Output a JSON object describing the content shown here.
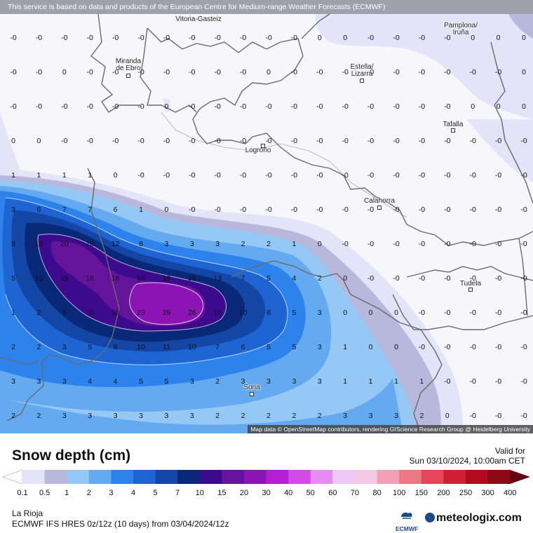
{
  "header": {
    "notice": "This service is based on data and products of the European Centre for Medium-range Weather Forecasts (ECMWF)"
  },
  "map": {
    "attribution": "Map data © OpenStreetMap contributors, rendering GIScience Research Group @ Heidelberg University",
    "cities": [
      {
        "name": "Vitoria-Gasteiz",
        "lines": [
          "Vitoria-Gasteiz"
        ]
      },
      {
        "name": "Pamplona/ Iruña",
        "lines": [
          "Pamplona/",
          "Iruña"
        ]
      },
      {
        "name": "Miranda de Ebro",
        "lines": [
          "Miranda",
          "de Ebro"
        ]
      },
      {
        "name": "Estella/ Lizarra",
        "lines": [
          "Estella/",
          "Lizarra"
        ]
      },
      {
        "name": "Tafalla",
        "lines": [
          "Tafalla"
        ]
      },
      {
        "name": "Logroño",
        "lines": [
          "Logroño"
        ]
      },
      {
        "name": "Calahorra",
        "lines": [
          "Calahorra"
        ]
      },
      {
        "name": "Tudela",
        "lines": [
          "Tudela"
        ]
      },
      {
        "name": "Soria",
        "lines": [
          "Soria"
        ]
      }
    ],
    "grid_values": [
      [
        "-0",
        "-0",
        "-0",
        "-0",
        "-0",
        "-0",
        "-0",
        "-0",
        "-0",
        "-0",
        "-0",
        "-0",
        "0",
        "0",
        "-0",
        "-0",
        "-0",
        "-0",
        "0",
        "0",
        "0"
      ],
      [
        "-0",
        "-0",
        "0",
        "-0",
        "-0",
        "-0",
        "-0",
        "-0",
        "-0",
        "-0",
        "0",
        "-0",
        "-0",
        "-0",
        "-0",
        "-0",
        "-0",
        "-0",
        "-0",
        "-0",
        "0"
      ],
      [
        "-0",
        "-0",
        "-0",
        "-0",
        "-0",
        "-0",
        "0",
        "-0",
        "-0",
        "-0",
        "-0",
        "-0",
        "-0",
        "-0",
        "-0",
        "-0",
        "-0",
        "-0",
        "0",
        "0",
        "0"
      ],
      [
        "0",
        "0",
        "-0",
        "-0",
        "-0",
        "-0",
        "-0",
        "-0",
        "-0",
        "-0",
        "-0",
        "-0",
        "-0",
        "-0",
        "-0",
        "-0",
        "-0",
        "-0",
        "-0",
        "-0",
        "-0"
      ],
      [
        "1",
        "1",
        "1",
        "1",
        "0",
        "-0",
        "-0",
        "-0",
        "-0",
        "-0",
        "-0",
        "-0",
        "-0",
        "-0",
        "-0",
        "-0",
        "-0",
        "-0",
        "-0",
        "-0",
        "-0"
      ],
      [
        "3",
        "6",
        "7",
        "7",
        "6",
        "1",
        "0",
        "-0",
        "-0",
        "-0",
        "-0",
        "-0",
        "-0",
        "-0",
        "-0",
        "-0",
        "-0",
        "-0",
        "-0",
        "-0",
        "-0"
      ],
      [
        "8",
        "13",
        "20",
        "16",
        "12",
        "8",
        "3",
        "3",
        "3",
        "2",
        "2",
        "1",
        "0",
        "-0",
        "-0",
        "-0",
        "-0",
        "-0",
        "-0",
        "-0",
        "-0"
      ],
      [
        "5",
        "12",
        "16",
        "16",
        "16",
        "18",
        "18",
        "18",
        "13",
        "7",
        "5",
        "4",
        "2",
        "0",
        "-0",
        "-0",
        "-0",
        "-0",
        "-0",
        "-0",
        "-0"
      ],
      [
        "1",
        "2",
        "5",
        "10",
        "16",
        "23",
        "29",
        "26",
        "16",
        "10",
        "8",
        "5",
        "3",
        "0",
        "0",
        "0",
        "-0",
        "-0",
        "-0",
        "-0",
        "-0"
      ],
      [
        "2",
        "2",
        "3",
        "5",
        "8",
        "10",
        "11",
        "10",
        "7",
        "6",
        "5",
        "5",
        "3",
        "1",
        "0",
        "0",
        "-0",
        "-0",
        "-0",
        "-0",
        "-0"
      ],
      [
        "3",
        "3",
        "3",
        "4",
        "4",
        "5",
        "5",
        "3",
        "2",
        "3",
        "3",
        "3",
        "3",
        "1",
        "1",
        "1",
        "1",
        "-0",
        "-0",
        "-0",
        "-0"
      ],
      [
        "2",
        "2",
        "3",
        "3",
        "3",
        "3",
        "3",
        "3",
        "2",
        "2",
        "2",
        "2",
        "2",
        "3",
        "3",
        "3",
        "2",
        "0",
        "-0",
        "-0",
        "-0"
      ]
    ]
  },
  "legend": {
    "title": "Snow depth (cm)",
    "valid_label": "Valid for",
    "valid_time": "Sun 03/10/2024, 10:00am CET",
    "ticks": [
      "0.1",
      "0.5",
      "1",
      "2",
      "3",
      "4",
      "5",
      "7",
      "10",
      "15",
      "20",
      "30",
      "40",
      "50",
      "60",
      "70",
      "80",
      "100",
      "150",
      "200",
      "250",
      "300",
      "400"
    ],
    "colors": [
      "#ffffff",
      "#e4e4f8",
      "#b8b8dc",
      "#96c8f5",
      "#64aaf0",
      "#2d82eb",
      "#1e64d2",
      "#1446a5",
      "#0a2878",
      "#3c0a8c",
      "#64149b",
      "#8c14b4",
      "#b41ed2",
      "#d24be6",
      "#e68cf5",
      "#f0c8fa",
      "#f5c8e6",
      "#f0a0b4",
      "#eb7882",
      "#e6465a",
      "#d21e32",
      "#b40a1e",
      "#8c0a14",
      "#640014"
    ]
  },
  "footer": {
    "region": "La Rioja",
    "model": "ECMWF IFS HRES 0z/12z (10 days) from 03/04/2024/12z",
    "ecmwf_label": "ECMWF",
    "brand": "meteologix.com"
  }
}
